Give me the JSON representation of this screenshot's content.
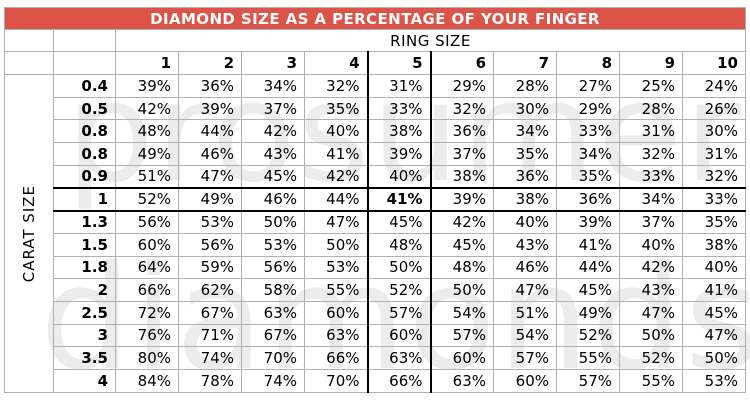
{
  "watermark": {
    "line1": "prosumer",
    "line2": "diamonds"
  },
  "colors": {
    "title_bg": "#DC5347",
    "title_text": "#FFFFFF",
    "grid_line": "#B0B0B0",
    "highlight_border": "#000000",
    "watermark_text": "rgba(0,0,0,0.075)"
  },
  "chart_data": {
    "type": "table",
    "title": "DIAMOND SIZE AS A PERCENTAGE OF YOUR FINGER",
    "col_group_label": "RING SIZE",
    "row_group_label": "CARAT SIZE",
    "unit": "%",
    "ring_sizes": [
      "1",
      "2",
      "3",
      "4",
      "5",
      "6",
      "7",
      "8",
      "9",
      "10"
    ],
    "carat_sizes": [
      "0.4",
      "0.5",
      "0.8",
      "0.8",
      "0.9",
      "1",
      "1.3",
      "1.5",
      "1.8",
      "2",
      "2.5",
      "3",
      "3.5",
      "4"
    ],
    "values": [
      [
        39,
        36,
        34,
        32,
        31,
        29,
        28,
        27,
        25,
        24
      ],
      [
        42,
        39,
        37,
        35,
        33,
        32,
        30,
        29,
        28,
        26
      ],
      [
        48,
        44,
        42,
        40,
        38,
        36,
        34,
        33,
        31,
        30
      ],
      [
        49,
        46,
        43,
        41,
        39,
        37,
        35,
        34,
        32,
        31
      ],
      [
        51,
        47,
        45,
        42,
        40,
        38,
        36,
        35,
        33,
        32
      ],
      [
        52,
        49,
        46,
        44,
        41,
        39,
        38,
        36,
        34,
        33
      ],
      [
        56,
        53,
        50,
        47,
        45,
        42,
        40,
        39,
        37,
        35
      ],
      [
        60,
        56,
        53,
        50,
        48,
        45,
        43,
        41,
        40,
        38
      ],
      [
        64,
        59,
        56,
        53,
        50,
        48,
        46,
        44,
        42,
        40
      ],
      [
        66,
        62,
        58,
        55,
        52,
        50,
        47,
        45,
        43,
        41
      ],
      [
        72,
        67,
        63,
        60,
        57,
        54,
        51,
        49,
        47,
        45
      ],
      [
        76,
        71,
        67,
        63,
        60,
        57,
        54,
        52,
        50,
        47
      ],
      [
        80,
        74,
        70,
        66,
        63,
        60,
        57,
        55,
        52,
        50
      ],
      [
        84,
        78,
        74,
        70,
        66,
        63,
        60,
        57,
        55,
        53
      ]
    ],
    "highlight": {
      "ring_size": "5",
      "carat_size": "1",
      "value": 41
    },
    "layout": {
      "grid": true,
      "highlight_style": "thick black outline on row and column, bold intersection cell"
    }
  }
}
